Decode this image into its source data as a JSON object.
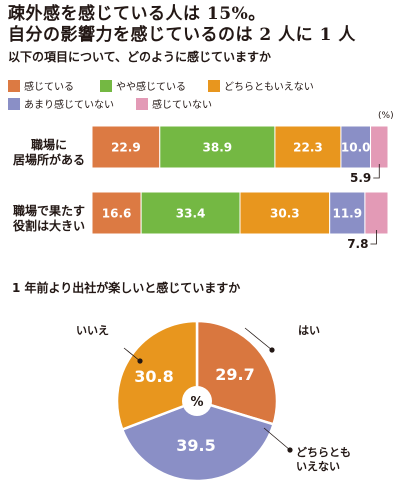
{
  "headline": {
    "line1": "疎外感を感じている人は 15%。",
    "line2": "自分の影響力を感じているのは 2 人に 1 人"
  },
  "chart_data": [
    {
      "type": "bar",
      "subtype": "stacked-horizontal-100",
      "title": "以下の項目について、どのように感じていますか",
      "unit_label": "(%)",
      "categories": [
        "職場に\n居場所がある",
        "職場で果たす\n役割は大きい"
      ],
      "series": [
        {
          "name": "感じている",
          "color": "#dc7a43",
          "values": [
            22.9,
            16.6
          ]
        },
        {
          "name": "やや感じている",
          "color": "#74b843",
          "values": [
            38.9,
            33.4
          ]
        },
        {
          "name": "どちらともいえない",
          "color": "#e8961e",
          "values": [
            22.3,
            30.3
          ]
        },
        {
          "name": "あまり感じていない",
          "color": "#8a8fc6",
          "values": [
            10.0,
            11.9
          ]
        },
        {
          "name": "感じていない",
          "color": "#e39ab6",
          "values": [
            5.9,
            7.8
          ]
        }
      ],
      "legend_position": "top",
      "grid": false
    },
    {
      "type": "pie",
      "title": "1 年前より出社が楽しいと感じていますか",
      "center_label": "%",
      "slices": [
        {
          "label": "はい",
          "value": 29.7,
          "color": "#d9773f"
        },
        {
          "label": "どちらとも\nいえない",
          "value": 39.5,
          "color": "#8a8fc6"
        },
        {
          "label": "いいえ",
          "value": 30.8,
          "color": "#e8961e"
        }
      ]
    }
  ]
}
